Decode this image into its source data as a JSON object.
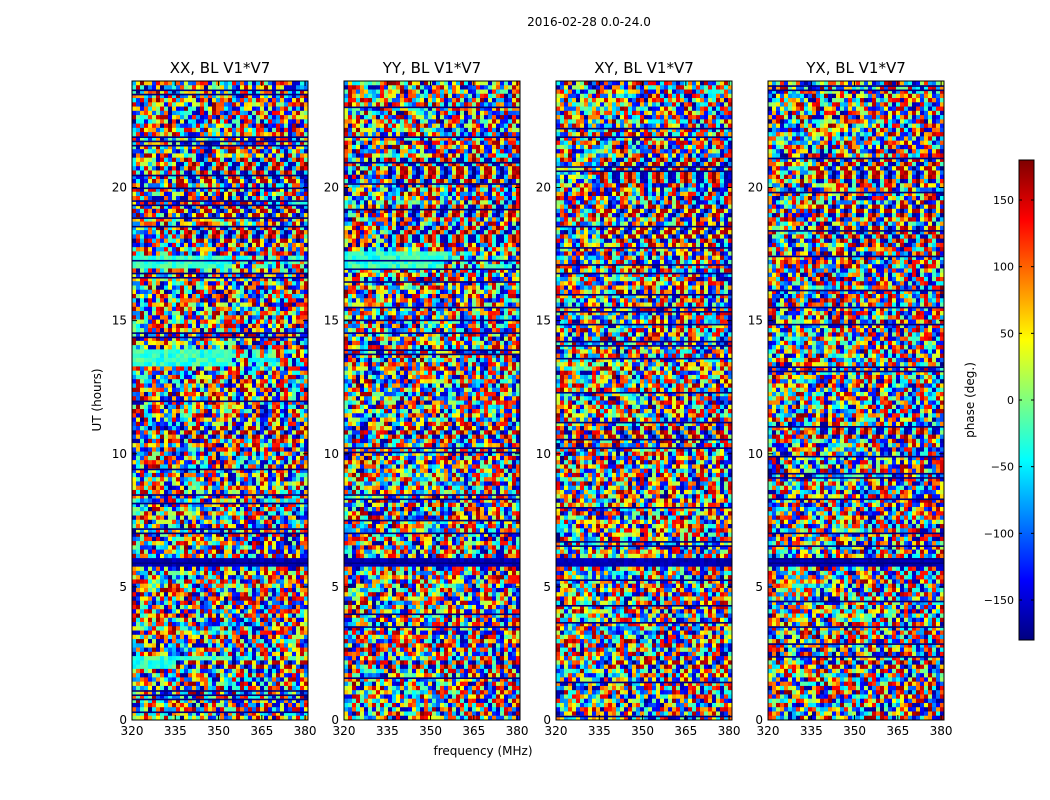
{
  "figure": {
    "suptitle": "2016-02-28 0.0-24.0",
    "xlabel": "frequency (MHz)",
    "ylabel": "UT (hours)"
  },
  "colorbar": {
    "label": "phase (deg.)",
    "ticks": [
      150,
      100,
      50,
      0,
      -50,
      -100,
      -150
    ],
    "tick_labels": [
      "150",
      "100",
      "50",
      "0",
      "−50",
      "−100",
      "−150"
    ],
    "range": [
      -180,
      180
    ],
    "colormap": "jet",
    "colors": [
      "#00007f",
      "#0000ff",
      "#007fff",
      "#00ffff",
      "#7fff7f",
      "#ffff00",
      "#ff7f00",
      "#ff0000",
      "#7f0000"
    ]
  },
  "chart_data": {
    "type": "heatmap",
    "colormap": "jet",
    "value_range": [
      -180,
      180
    ],
    "x_axis": {
      "label": "frequency (MHz)",
      "range": [
        320,
        381
      ],
      "ticks": [
        320,
        335,
        350,
        365,
        380
      ],
      "tick_labels": [
        "320",
        "335",
        "350",
        "365",
        "380"
      ]
    },
    "y_axis": {
      "label": "UT (hours)",
      "range": [
        0,
        24
      ],
      "ticks": [
        0,
        5,
        10,
        15,
        20
      ],
      "tick_labels": [
        "0",
        "5",
        "10",
        "15",
        "20"
      ]
    },
    "panels": [
      {
        "title": "XX, BL V1*V7",
        "polarization": "XX"
      },
      {
        "title": "YY, BL V1*V7",
        "polarization": "YY"
      },
      {
        "title": "XY, BL V1*V7",
        "polarization": "XY"
      },
      {
        "title": "YX, BL V1*V7",
        "polarization": "YX"
      }
    ],
    "features": {
      "flagged_band_ut_hours": [
        5.7,
        6.1
      ],
      "fringe_pattern_ut_hours": [
        [
          18.9,
          19.3
        ],
        [
          20.2,
          21.1
        ],
        [
          17.9,
          18.6
        ],
        [
          10.6,
          11.0
        ],
        [
          2.0,
          2.3
        ]
      ],
      "fringe_region_mhz": [
        355,
        381
      ]
    }
  }
}
